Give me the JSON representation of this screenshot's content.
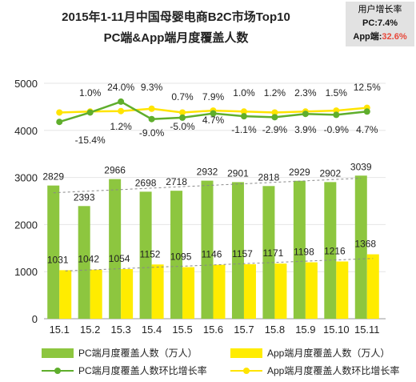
{
  "title_line1": "2015年1-11月中国母婴电商B2C市场Top10",
  "title_line2": "PC端&App端月度覆盖人数",
  "info_box": {
    "heading": "用户增长率",
    "pc_label": "PC:",
    "pc_value": "7.4%",
    "app_label": "App端:",
    "app_value": "32.6%"
  },
  "colors": {
    "pc_bar": "#8dc63f",
    "app_bar": "#ffec00",
    "pc_line": "#5fae2c",
    "app_line": "#ffe400"
  },
  "chart_data": {
    "type": "bar",
    "title": "2015年1-11月中国母婴电商B2C市场Top10 PC端&App端月度覆盖人数",
    "categories": [
      "15.1",
      "15.2",
      "15.3",
      "15.4",
      "15.5",
      "15.6",
      "15.7",
      "15.8",
      "15.9",
      "15.10",
      "15.11"
    ],
    "series": [
      {
        "name": "PC端月度覆盖人数（万人）",
        "type": "bar",
        "values": [
          2829,
          2393,
          2966,
          2698,
          2718,
          2932,
          2901,
          2818,
          2929,
          2902,
          3039
        ]
      },
      {
        "name": "App端月度覆盖人数（万人）",
        "type": "bar",
        "values": [
          1031,
          1042,
          1054,
          1152,
          1095,
          1146,
          1157,
          1171,
          1198,
          1216,
          1368
        ]
      },
      {
        "name": "PC端月度覆盖人数环比增长率",
        "type": "line",
        "labels": [
          "",
          "-15.4%",
          "24.0%",
          "-9.0%",
          "0.7%",
          "7.9%",
          "-1.1%",
          "-2.9%",
          "3.9%",
          "-0.9%",
          "4.7%"
        ]
      },
      {
        "name": "App端月度覆盖人数环比增长率",
        "type": "line",
        "labels": [
          "",
          "1.0%",
          "1.2%",
          "9.3%",
          "-5.0%",
          "4.7%",
          "1.0%",
          "1.2%",
          "2.3%",
          "1.5%",
          "12.5%"
        ]
      }
    ],
    "yticks": [
      0,
      1000,
      2000,
      3000,
      4000,
      5000
    ],
    "ylim": [
      0,
      5000
    ],
    "grid": true,
    "legend": "bottom"
  }
}
